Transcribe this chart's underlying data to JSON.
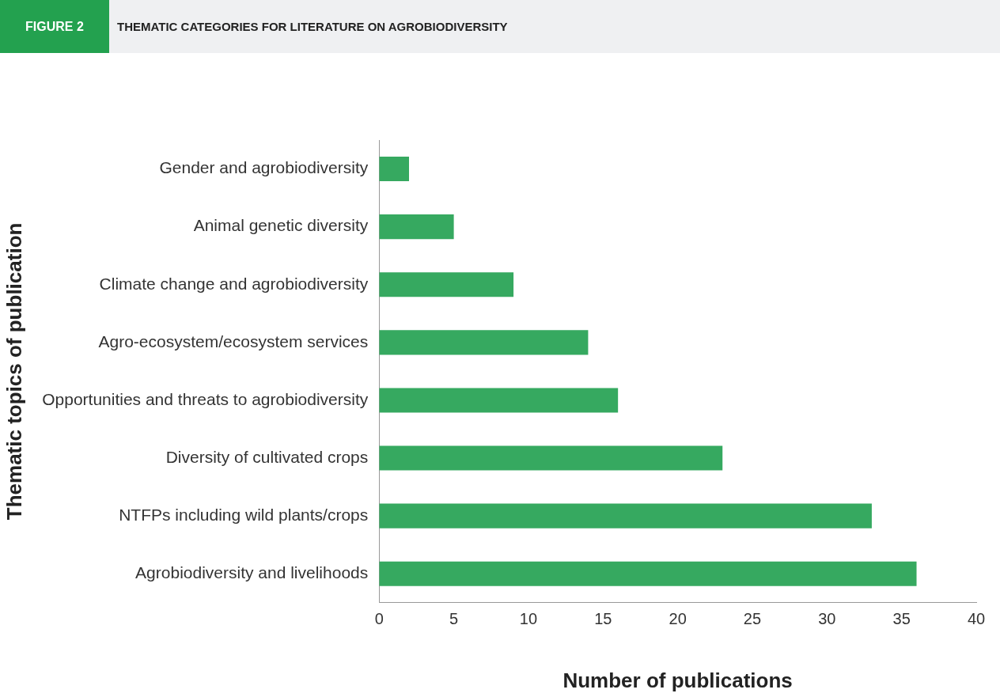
{
  "chart_data": {
    "type": "bar",
    "orientation": "horizontal",
    "title": "THEMATIC CATEGORIES FOR LITERATURE ON AGROBIODIVERSITY",
    "annotations": [
      "FIGURE 2"
    ],
    "xlabel": "Number of publications",
    "ylabel": "Thematic topics of publication",
    "categories": [
      "Gender and agrobiodiversity",
      "Animal genetic diversity",
      "Climate change and agrobiodiversity",
      "Agro-ecosystem/ecosystem services",
      "Opportunities and threats to agrobiodiversity",
      "Diversity of cultivated crops",
      "NTFPs including wild plants/crops",
      "Agrobiodiversity and livelihoods"
    ],
    "values": [
      2,
      5,
      9,
      14,
      16,
      23,
      33,
      36
    ],
    "color": "#36a960",
    "xlim": [
      0,
      40
    ],
    "xticks": [
      0,
      5,
      10,
      15,
      20,
      25,
      30,
      35,
      40
    ],
    "grid": false,
    "legend": false
  }
}
